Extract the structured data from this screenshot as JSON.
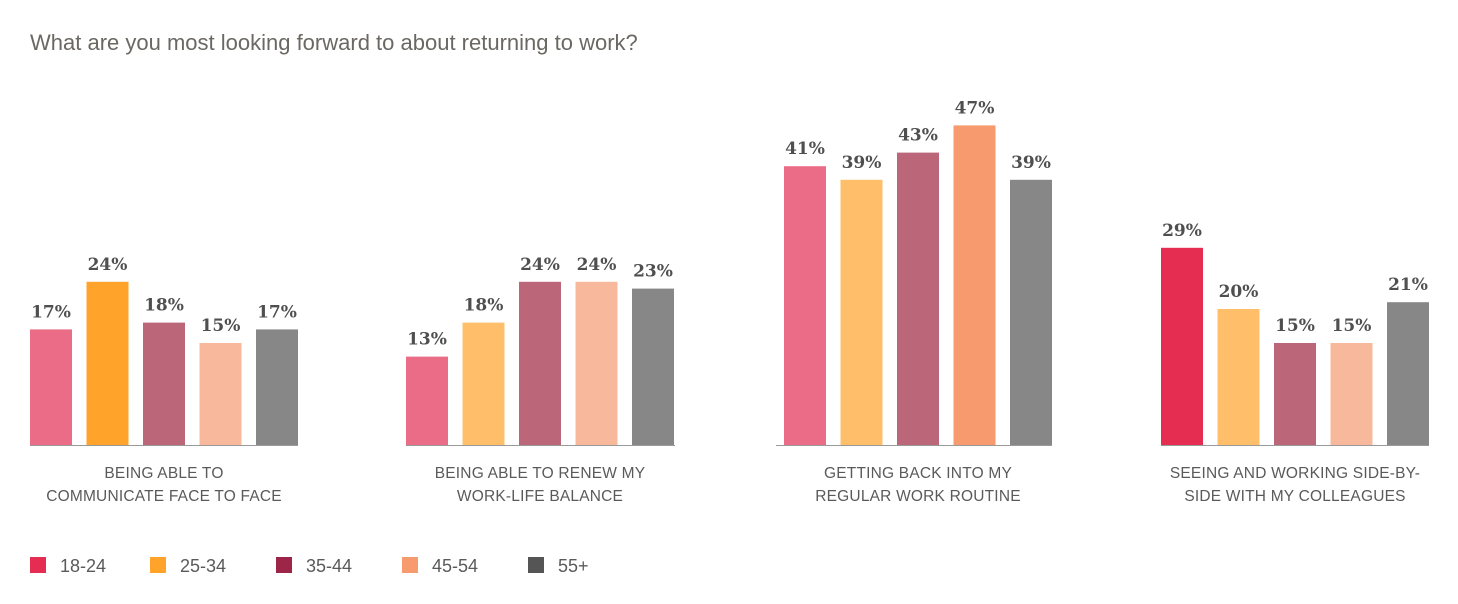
{
  "title": "What are you most looking forward to about returning to work?",
  "chart_data": {
    "type": "bar",
    "title": "What are you most looking forward to about returning to work?",
    "xlabel": "",
    "ylabel": "",
    "ylim": [
      0,
      50
    ],
    "unit": "%",
    "grid": false,
    "legend_position": "bottom-left",
    "categories": [
      [
        "BEING ABLE TO",
        "COMMUNICATE FACE TO FACE"
      ],
      [
        "BEING ABLE TO RENEW MY",
        "WORK-LIFE BALANCE"
      ],
      [
        "GETTING BACK INTO MY",
        "REGULAR WORK ROUTINE"
      ],
      [
        "SEEING AND WORKING SIDE-BY-",
        "SIDE WITH MY COLLEAGUES"
      ]
    ],
    "series": [
      {
        "name": "18-24",
        "values": [
          17,
          13,
          41,
          29
        ]
      },
      {
        "name": "25-34",
        "values": [
          24,
          18,
          39,
          20
        ]
      },
      {
        "name": "35-44",
        "values": [
          18,
          24,
          43,
          15
        ]
      },
      {
        "name": "45-54",
        "values": [
          15,
          24,
          47,
          15
        ]
      },
      {
        "name": "55+",
        "values": [
          17,
          23,
          39,
          21
        ]
      }
    ],
    "legend_colors": [
      "#e52d51",
      "#ffa32a",
      "#9c2548",
      "#f79b6e",
      "#555555"
    ],
    "bar_colors": [
      [
        "#ea6c86",
        "#ffa32a",
        "#bb6679",
        "#f8b89b",
        "#878787"
      ],
      [
        "#ea6c86",
        "#ffbf6a",
        "#bb6679",
        "#f8b89b",
        "#878787"
      ],
      [
        "#ea6c86",
        "#ffbf6a",
        "#bb6679",
        "#f79b6e",
        "#878787"
      ],
      [
        "#e52d51",
        "#ffbf6a",
        "#bb6679",
        "#f8b89b",
        "#878787"
      ]
    ]
  }
}
